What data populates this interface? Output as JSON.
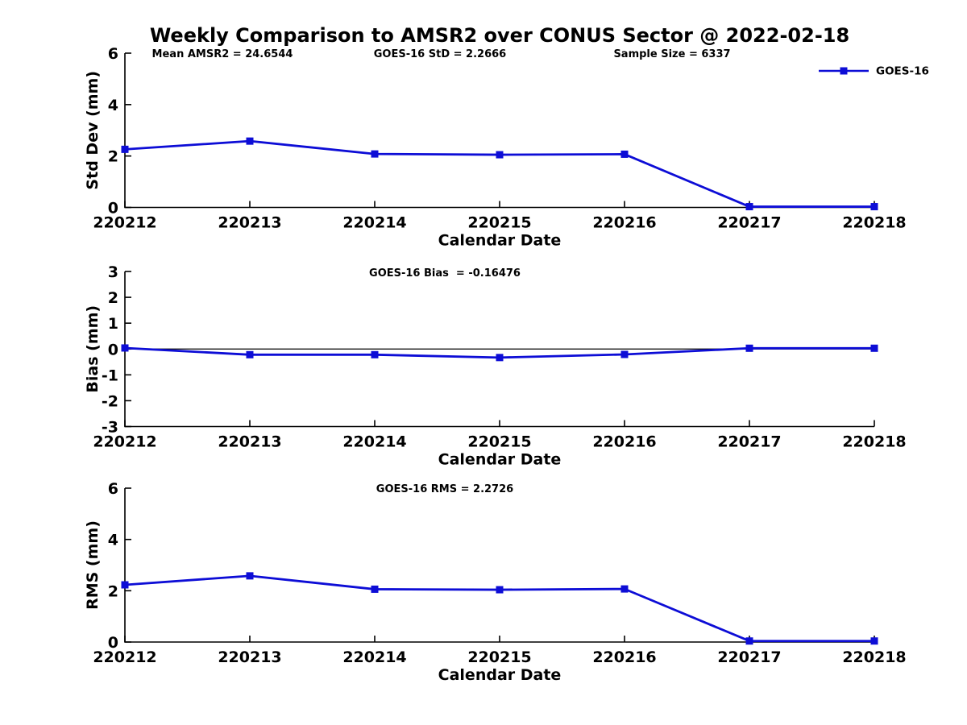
{
  "title": "Weekly Comparison to AMSR2 over CONUS Sector @ 2022-02-18",
  "colors": {
    "series": "#0d0dd6",
    "axis": "#000000",
    "text": "#000000",
    "background": "#ffffff"
  },
  "chart_data": [
    {
      "type": "line",
      "id": "stddev",
      "categories": [
        "220212",
        "220213",
        "220214",
        "220215",
        "220216",
        "220217",
        "220218"
      ],
      "series": [
        {
          "name": "GOES-16",
          "values": [
            2.26,
            2.58,
            2.08,
            2.05,
            2.07,
            0.03,
            0.03
          ]
        }
      ],
      "xlabel": "Calendar Date",
      "ylabel": "Std Dev (mm)",
      "ylim": [
        0,
        6
      ],
      "yticks": [
        0,
        2,
        4,
        6
      ],
      "annotations": [
        "Mean AMSR2 = 24.6544",
        "GOES-16 StD = 2.2666",
        "Sample Size = 6337"
      ],
      "legend": {
        "labels": [
          "GOES-16"
        ],
        "position": "top-right"
      },
      "grid": false
    },
    {
      "type": "line",
      "id": "bias",
      "categories": [
        "220212",
        "220213",
        "220214",
        "220215",
        "220216",
        "220217",
        "220218"
      ],
      "series": [
        {
          "name": "GOES-16",
          "values": [
            0.04,
            -0.22,
            -0.22,
            -0.33,
            -0.21,
            0.03,
            0.03
          ]
        }
      ],
      "xlabel": "Calendar Date",
      "ylabel": "Bias (mm)",
      "ylim": [
        -3,
        3
      ],
      "yticks": [
        -3,
        -2,
        -1,
        0,
        1,
        2,
        3
      ],
      "annotations": [
        "GOES-16 Bias  = -0.16476"
      ],
      "zero_line": true,
      "grid": false
    },
    {
      "type": "line",
      "id": "rms",
      "categories": [
        "220212",
        "220213",
        "220214",
        "220215",
        "220216",
        "220217",
        "220218"
      ],
      "series": [
        {
          "name": "GOES-16",
          "values": [
            2.23,
            2.58,
            2.06,
            2.04,
            2.07,
            0.04,
            0.04
          ]
        }
      ],
      "xlabel": "Calendar Date",
      "ylabel": "RMS (mm)",
      "ylim": [
        0,
        6
      ],
      "yticks": [
        0,
        2,
        4,
        6
      ],
      "annotations": [
        "GOES-16 RMS = 2.2726"
      ],
      "grid": false
    }
  ]
}
